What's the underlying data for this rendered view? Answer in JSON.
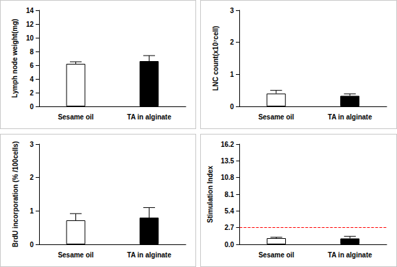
{
  "chart_data": [
    {
      "type": "bar",
      "y_label": "Lymph node weight(mg)",
      "categories": [
        "Sesame oil",
        "TA in alginate"
      ],
      "values": [
        6.2,
        6.6
      ],
      "errors": [
        0.3,
        0.8
      ],
      "colors": [
        "#ffffff",
        "#000000"
      ],
      "ylim": [
        0,
        14
      ],
      "yticks": [
        0,
        2,
        4,
        6,
        8,
        10,
        12,
        14
      ],
      "grid": false
    },
    {
      "type": "bar",
      "y_label": "LNC count(x10⁷cell)",
      "categories": [
        "Sesame oil",
        "TA in alginate"
      ],
      "values": [
        0.4,
        0.33
      ],
      "errors": [
        0.1,
        0.06
      ],
      "colors": [
        "#ffffff",
        "#000000"
      ],
      "ylim": [
        0,
        3
      ],
      "yticks": [
        0,
        1,
        2,
        3
      ],
      "grid": false
    },
    {
      "type": "bar",
      "y_label": "BrdU incorporation (% /100cells)",
      "categories": [
        "Sesame oil",
        "TA in alginate"
      ],
      "values": [
        0.72,
        0.8
      ],
      "errors": [
        0.2,
        0.3
      ],
      "colors": [
        "#ffffff",
        "#000000"
      ],
      "ylim": [
        0,
        3
      ],
      "yticks": [
        0,
        1,
        2,
        3
      ],
      "grid": false
    },
    {
      "type": "bar",
      "y_label": "Stimulation Index",
      "categories": [
        "Sesame oil",
        "TA in alginate"
      ],
      "values": [
        1.0,
        0.95
      ],
      "errors": [
        0.15,
        0.35
      ],
      "colors": [
        "#ffffff",
        "#000000"
      ],
      "ylim": [
        0,
        16.2
      ],
      "yticks": [
        {
          "value": 0,
          "label": "0.0"
        },
        2.7,
        5.4,
        8.1,
        10.8,
        13.5,
        16.2
      ],
      "threshold": 2.7,
      "grid": false
    }
  ]
}
